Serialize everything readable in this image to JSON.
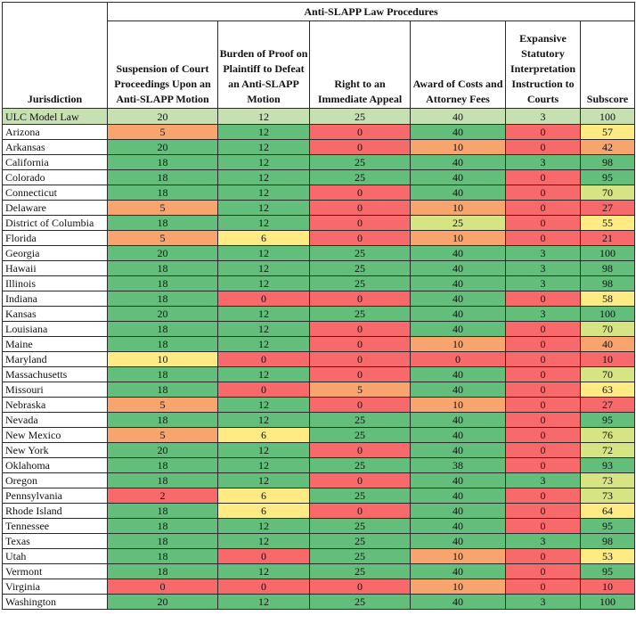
{
  "table": {
    "group_header": "Anti-SLAPP Law Procedures",
    "headers": {
      "jurisdiction": "Jurisdiction",
      "suspension": "Suspension of Court Proceedings Upon an Anti-SLAPP Motion",
      "burden": "Burden of Proof on Plaintiff to Defeat an Anti-SLAPP Motion",
      "appeal": "Right to an Immediate Appeal",
      "costs": "Award of Costs and Attorney Fees",
      "expansive": "Expansive Statutory Interpretation Instruction to Courts",
      "subscore": "Subscore"
    },
    "colors": {
      "green": "#63be7b",
      "red": "#f8696b",
      "orange": "#f8a46f",
      "yellow": "#ffeb84",
      "model": "#c6e0b4"
    },
    "rows": [
      {
        "jurisdiction": "ULC Model Law",
        "suspension": "20",
        "burden": "12",
        "appeal": "25",
        "costs": "40",
        "expansive": "3",
        "subscore": "100"
      },
      {
        "jurisdiction": "Arizona",
        "suspension": "5",
        "burden": "12",
        "appeal": "0",
        "costs": "40",
        "expansive": "0",
        "subscore": "57"
      },
      {
        "jurisdiction": "Arkansas",
        "suspension": "20",
        "burden": "12",
        "appeal": "0",
        "costs": "10",
        "expansive": "0",
        "subscore": "42"
      },
      {
        "jurisdiction": "California",
        "suspension": "18",
        "burden": "12",
        "appeal": "25",
        "costs": "40",
        "expansive": "3",
        "subscore": "98"
      },
      {
        "jurisdiction": "Colorado",
        "suspension": "18",
        "burden": "12",
        "appeal": "25",
        "costs": "40",
        "expansive": "0",
        "subscore": "95"
      },
      {
        "jurisdiction": "Connecticut",
        "suspension": "18",
        "burden": "12",
        "appeal": "0",
        "costs": "40",
        "expansive": "0",
        "subscore": "70"
      },
      {
        "jurisdiction": "Delaware",
        "suspension": "5",
        "burden": "12",
        "appeal": "0",
        "costs": "10",
        "expansive": "0",
        "subscore": "27"
      },
      {
        "jurisdiction": "District of Columbia",
        "suspension": "18",
        "burden": "12",
        "appeal": "0",
        "costs": "25",
        "expansive": "0",
        "subscore": "55"
      },
      {
        "jurisdiction": "Florida",
        "suspension": "5",
        "burden": "6",
        "appeal": "0",
        "costs": "10",
        "expansive": "0",
        "subscore": "21"
      },
      {
        "jurisdiction": "Georgia",
        "suspension": "20",
        "burden": "12",
        "appeal": "25",
        "costs": "40",
        "expansive": "3",
        "subscore": "100"
      },
      {
        "jurisdiction": "Hawaii",
        "suspension": "18",
        "burden": "12",
        "appeal": "25",
        "costs": "40",
        "expansive": "3",
        "subscore": "98"
      },
      {
        "jurisdiction": "Illinois",
        "suspension": "18",
        "burden": "12",
        "appeal": "25",
        "costs": "40",
        "expansive": "3",
        "subscore": "98"
      },
      {
        "jurisdiction": "Indiana",
        "suspension": "18",
        "burden": "0",
        "appeal": "0",
        "costs": "40",
        "expansive": "0",
        "subscore": "58"
      },
      {
        "jurisdiction": "Kansas",
        "suspension": "20",
        "burden": "12",
        "appeal": "25",
        "costs": "40",
        "expansive": "3",
        "subscore": "100"
      },
      {
        "jurisdiction": "Louisiana",
        "suspension": "18",
        "burden": "12",
        "appeal": "0",
        "costs": "40",
        "expansive": "0",
        "subscore": "70"
      },
      {
        "jurisdiction": "Maine",
        "suspension": "18",
        "burden": "12",
        "appeal": "0",
        "costs": "10",
        "expansive": "0",
        "subscore": "40"
      },
      {
        "jurisdiction": "Maryland",
        "suspension": "10",
        "burden": "0",
        "appeal": "0",
        "costs": "0",
        "expansive": "0",
        "subscore": "10"
      },
      {
        "jurisdiction": "Massachusetts",
        "suspension": "18",
        "burden": "12",
        "appeal": "0",
        "costs": "40",
        "expansive": "0",
        "subscore": "70"
      },
      {
        "jurisdiction": "Missouri",
        "suspension": "18",
        "burden": "0",
        "appeal": "5",
        "costs": "40",
        "expansive": "0",
        "subscore": "63"
      },
      {
        "jurisdiction": "Nebraska",
        "suspension": "5",
        "burden": "12",
        "appeal": "0",
        "costs": "10",
        "expansive": "0",
        "subscore": "27"
      },
      {
        "jurisdiction": "Nevada",
        "suspension": "18",
        "burden": "12",
        "appeal": "25",
        "costs": "40",
        "expansive": "0",
        "subscore": "95"
      },
      {
        "jurisdiction": "New Mexico",
        "suspension": "5",
        "burden": "6",
        "appeal": "25",
        "costs": "40",
        "expansive": "0",
        "subscore": "76"
      },
      {
        "jurisdiction": "New York",
        "suspension": "20",
        "burden": "12",
        "appeal": "0",
        "costs": "40",
        "expansive": "0",
        "subscore": "72"
      },
      {
        "jurisdiction": "Oklahoma",
        "suspension": "18",
        "burden": "12",
        "appeal": "25",
        "costs": "38",
        "expansive": "0",
        "subscore": "93"
      },
      {
        "jurisdiction": "Oregon",
        "suspension": "18",
        "burden": "12",
        "appeal": "0",
        "costs": "40",
        "expansive": "3",
        "subscore": "73"
      },
      {
        "jurisdiction": "Pennsylvania",
        "suspension": "2",
        "burden": "6",
        "appeal": "25",
        "costs": "40",
        "expansive": "0",
        "subscore": "73"
      },
      {
        "jurisdiction": "Rhode Island",
        "suspension": "18",
        "burden": "6",
        "appeal": "0",
        "costs": "40",
        "expansive": "0",
        "subscore": "64"
      },
      {
        "jurisdiction": "Tennessee",
        "suspension": "18",
        "burden": "12",
        "appeal": "25",
        "costs": "40",
        "expansive": "0",
        "subscore": "95"
      },
      {
        "jurisdiction": "Texas",
        "suspension": "18",
        "burden": "12",
        "appeal": "25",
        "costs": "40",
        "expansive": "3",
        "subscore": "98"
      },
      {
        "jurisdiction": "Utah",
        "suspension": "18",
        "burden": "0",
        "appeal": "25",
        "costs": "10",
        "expansive": "0",
        "subscore": "53"
      },
      {
        "jurisdiction": "Vermont",
        "suspension": "18",
        "burden": "12",
        "appeal": "25",
        "costs": "40",
        "expansive": "0",
        "subscore": "95"
      },
      {
        "jurisdiction": "Virginia",
        "suspension": "0",
        "burden": "0",
        "appeal": "0",
        "costs": "10",
        "expansive": "0",
        "subscore": "10"
      },
      {
        "jurisdiction": "Washington",
        "suspension": "20",
        "burden": "12",
        "appeal": "25",
        "costs": "40",
        "expansive": "3",
        "subscore": "100"
      }
    ]
  }
}
